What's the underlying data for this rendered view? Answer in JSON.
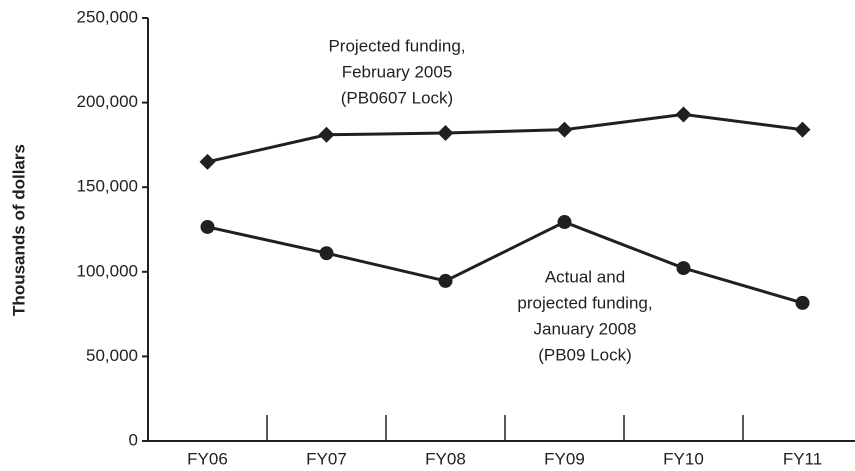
{
  "chart_data": {
    "type": "line",
    "ylabel": "Thousands of dollars",
    "categories": [
      "FY06",
      "FY07",
      "FY08",
      "FY09",
      "FY10",
      "FY11"
    ],
    "series": [
      {
        "name": "Projected funding, February 2005 (PB0607 Lock)",
        "color": "#231f20",
        "marker": "diamond",
        "values": [
          165000,
          181000,
          182000,
          184000,
          193000,
          184000
        ]
      },
      {
        "name": "Actual and projected funding, January 2008 (PB09 Lock)",
        "color": "#231f20",
        "marker": "circle",
        "values": [
          126500,
          111000,
          94600,
          129400,
          102200,
          81600
        ]
      }
    ],
    "annotations": [
      [
        "Projected funding,",
        "February 2005",
        "(PB0607 Lock)"
      ],
      [
        "Actual and",
        "projected funding,",
        "January 2008",
        "(PB09 Lock)"
      ]
    ],
    "ylim": [
      0,
      250000
    ],
    "yticks": [
      0,
      {
        "value": 50000,
        "label": "50,000"
      },
      {
        "value": 100000,
        "label": "100,000"
      },
      {
        "value": 150000,
        "label": "150,000"
      },
      {
        "value": 200000,
        "label": "200,000"
      },
      {
        "value": 250000,
        "label": "250,000"
      }
    ],
    "grid": false
  }
}
